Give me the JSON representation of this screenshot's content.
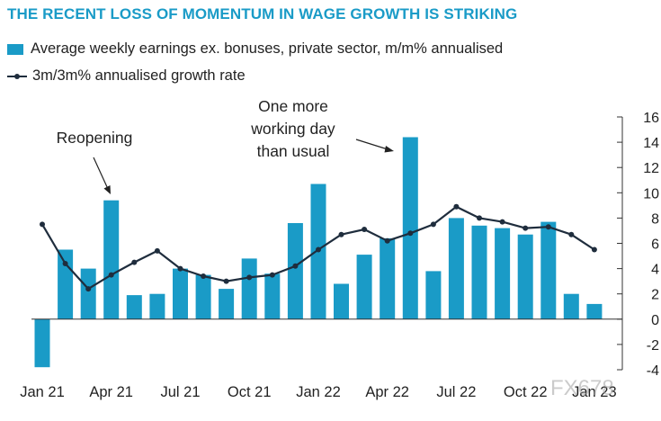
{
  "header": {
    "title": "THE RECENT LOSS OF MOMENTUM IN WAGE GROWTH IS STRIKING",
    "legend_bar": "Average weekly earnings ex. bonuses, private sector, m/m% annualised",
    "legend_line": "3m/3m% annualised growth rate"
  },
  "watermark": "FX678",
  "colors": {
    "bar": "#1a9bc7",
    "line": "#1f2d3d",
    "title": "#1a9bc7",
    "text": "#222222"
  },
  "chart_data": {
    "type": "bar",
    "ylim": [
      -4,
      16
    ],
    "yticks": [
      "16",
      "14",
      "12",
      "10",
      "8",
      "6",
      "4",
      "2",
      "0",
      "-2",
      "-4"
    ],
    "ytick_values": [
      16,
      14,
      12,
      10,
      8,
      6,
      4,
      2,
      0,
      -2,
      -4
    ],
    "x_tick_labels": [
      "Jan 21",
      "Apr 21",
      "Jul 21",
      "Oct 21",
      "Jan 22",
      "Apr 22",
      "Jul 22",
      "Oct 22",
      "Jan 23"
    ],
    "x_tick_indices": [
      0,
      3,
      6,
      9,
      12,
      15,
      18,
      21,
      24
    ],
    "categories": [
      "Jan 21",
      "Feb 21",
      "Mar 21",
      "Apr 21",
      "May 21",
      "Jun 21",
      "Jul 21",
      "Aug 21",
      "Sep 21",
      "Oct 21",
      "Nov 21",
      "Dec 21",
      "Jan 22",
      "Feb 22",
      "Mar 22",
      "Apr 22",
      "May 22",
      "Jun 22",
      "Jul 22",
      "Aug 22",
      "Sep 22",
      "Oct 22",
      "Nov 22",
      "Dec 22",
      "Jan 23"
    ],
    "series": [
      {
        "type": "bar",
        "values": [
          -3.8,
          5.5,
          4.0,
          9.4,
          1.9,
          2.0,
          4.0,
          3.5,
          2.4,
          4.8,
          3.6,
          7.6,
          10.7,
          2.8,
          5.1,
          6.4,
          14.4,
          3.8,
          8.0,
          7.4,
          7.2,
          6.7,
          7.7,
          2.0,
          1.2
        ]
      },
      {
        "type": "line",
        "values": [
          7.5,
          4.4,
          2.4,
          3.5,
          4.5,
          5.4,
          4.0,
          3.4,
          3.0,
          3.3,
          3.5,
          4.2,
          5.5,
          6.7,
          7.1,
          6.2,
          6.8,
          7.5,
          8.9,
          8.0,
          7.7,
          7.2,
          7.3,
          6.7,
          5.5
        ]
      }
    ],
    "annotations": [
      {
        "label_lines": [
          "Reopening"
        ],
        "target_category": "Apr 21"
      },
      {
        "label_lines": [
          "One more",
          "working day",
          "than usual"
        ],
        "target_category": "Apr 22"
      }
    ],
    "legend_position": "top-left",
    "grid": false
  }
}
